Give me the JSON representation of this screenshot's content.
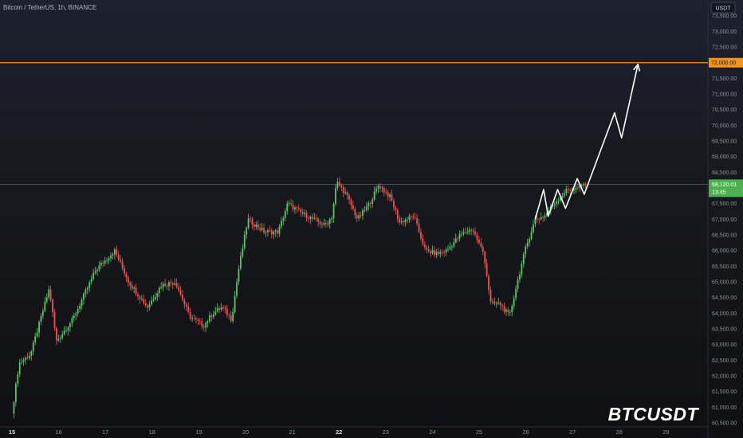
{
  "header": {
    "symbol_info": "Bitcoin / TetherUS, 1h, BINANCE"
  },
  "axis": {
    "currency": "USDT"
  },
  "watermark": "BTCUSDT",
  "colors": {
    "up": "#26a69a",
    "upBright": "#5ec46a",
    "down": "#ef5350",
    "target": "#f7931a",
    "priceLabelBg": "#4caf50",
    "projection": "#ffffff"
  },
  "price_badge": {
    "price": "68,120.01",
    "countdown": "13:45"
  },
  "target_badge": {
    "price": "72,000.00"
  },
  "chart_data": {
    "type": "candlestick",
    "title": "Bitcoin / TetherUS, 1h, BINANCE",
    "xlabel": "",
    "ylabel": "",
    "ylim": [
      60400,
      73900
    ],
    "x_ticks": [
      {
        "day": 15,
        "label": "15",
        "bold": true
      },
      {
        "day": 16,
        "label": "16"
      },
      {
        "day": 17,
        "label": "17"
      },
      {
        "day": 18,
        "label": "18"
      },
      {
        "day": 19,
        "label": "19"
      },
      {
        "day": 20,
        "label": "20"
      },
      {
        "day": 21,
        "label": "21"
      },
      {
        "day": 22,
        "label": "22",
        "bold": true
      },
      {
        "day": 23,
        "label": "23"
      },
      {
        "day": 24,
        "label": "24"
      },
      {
        "day": 25,
        "label": "25"
      },
      {
        "day": 26,
        "label": "26"
      },
      {
        "day": 27,
        "label": "27"
      },
      {
        "day": 28,
        "label": "28"
      },
      {
        "day": 29,
        "label": "29"
      }
    ],
    "y_ticks": [
      {
        "value": 73500,
        "label": "73,500.00"
      },
      {
        "value": 73000,
        "label": "73,000.00"
      },
      {
        "value": 72500,
        "label": "72,500.00"
      },
      {
        "value": 71500,
        "label": "71,500.00"
      },
      {
        "value": 71000,
        "label": "71,000.00"
      },
      {
        "value": 70500,
        "label": "70,500.00"
      },
      {
        "value": 70000,
        "label": "70,000.00"
      },
      {
        "value": 69500,
        "label": "69,500.00"
      },
      {
        "value": 69000,
        "label": "69,000.00"
      },
      {
        "value": 68500,
        "label": "68,500.00"
      },
      {
        "value": 67500,
        "label": "67,500.00"
      },
      {
        "value": 67000,
        "label": "67,000.00"
      },
      {
        "value": 66500,
        "label": "66,500.00"
      },
      {
        "value": 66000,
        "label": "66,000.00"
      },
      {
        "value": 65500,
        "label": "65,500.00"
      },
      {
        "value": 65000,
        "label": "65,000.00"
      },
      {
        "value": 64500,
        "label": "64,500.00"
      },
      {
        "value": 64000,
        "label": "64,000.00"
      },
      {
        "value": 63500,
        "label": "63,500.00"
      },
      {
        "value": 63000,
        "label": "63,000.00"
      },
      {
        "value": 62500,
        "label": "62,500.00"
      },
      {
        "value": 62000,
        "label": "62,000.00"
      },
      {
        "value": 61500,
        "label": "61,500.00"
      },
      {
        "value": 61000,
        "label": "61,000.00"
      },
      {
        "value": 60500,
        "label": "60,500.00"
      }
    ],
    "current_price": 68120.01,
    "target_level": 72000,
    "path_anchors": [
      [
        15.0,
        60800
      ],
      [
        15.15,
        62400
      ],
      [
        15.4,
        62700
      ],
      [
        15.8,
        64800
      ],
      [
        15.95,
        63100
      ],
      [
        16.3,
        63800
      ],
      [
        16.8,
        65400
      ],
      [
        17.2,
        66000
      ],
      [
        17.5,
        65000
      ],
      [
        17.9,
        64200
      ],
      [
        18.2,
        64900
      ],
      [
        18.5,
        65000
      ],
      [
        18.8,
        63900
      ],
      [
        19.1,
        63600
      ],
      [
        19.3,
        64000
      ],
      [
        19.5,
        64200
      ],
      [
        19.7,
        63800
      ],
      [
        19.85,
        65400
      ],
      [
        20.05,
        67000
      ],
      [
        20.4,
        66600
      ],
      [
        20.7,
        66600
      ],
      [
        20.9,
        67500
      ],
      [
        21.2,
        67200
      ],
      [
        21.45,
        67000
      ],
      [
        21.7,
        66800
      ],
      [
        21.85,
        67100
      ],
      [
        21.95,
        68200
      ],
      [
        22.15,
        67800
      ],
      [
        22.4,
        67000
      ],
      [
        22.65,
        67500
      ],
      [
        22.85,
        68100
      ],
      [
        23.1,
        67700
      ],
      [
        23.3,
        66900
      ],
      [
        23.6,
        67100
      ],
      [
        23.85,
        66000
      ],
      [
        24.1,
        65900
      ],
      [
        24.3,
        66000
      ],
      [
        24.6,
        66500
      ],
      [
        24.85,
        66700
      ],
      [
        25.1,
        65900
      ],
      [
        25.25,
        64300
      ],
      [
        25.45,
        64300
      ],
      [
        25.65,
        63900
      ],
      [
        25.8,
        64900
      ],
      [
        26.0,
        66100
      ],
      [
        26.2,
        67000
      ],
      [
        26.4,
        67100
      ],
      [
        26.6,
        67500
      ],
      [
        26.85,
        67900
      ],
      [
        27.1,
        68000
      ],
      [
        27.28,
        68120
      ]
    ],
    "projection": {
      "points": [
        [
          26.2,
          67000
        ],
        [
          26.38,
          67950
        ],
        [
          26.48,
          67100
        ],
        [
          26.68,
          67950
        ],
        [
          26.85,
          67350
        ],
        [
          27.1,
          68300
        ],
        [
          27.25,
          67800
        ],
        [
          27.9,
          70400
        ],
        [
          28.05,
          69600
        ],
        [
          28.4,
          71950
        ]
      ]
    }
  }
}
